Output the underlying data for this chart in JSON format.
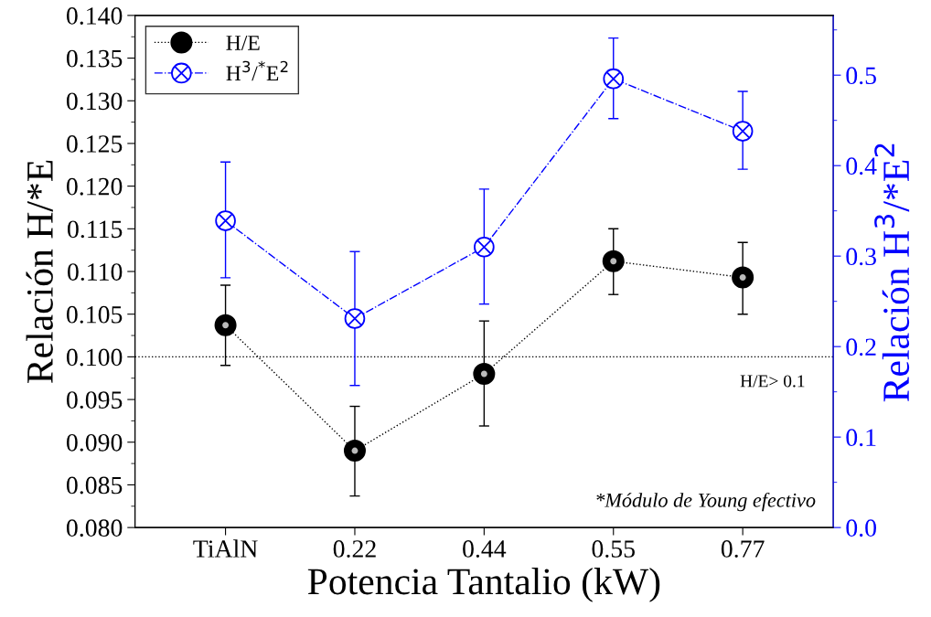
{
  "chart_data": {
    "type": "line",
    "xlabel": "Potencia Tantalio (kW)",
    "ylabel": "Relación H/*E",
    "y2label": "Relación H$^{3}$/*E$^{2}$",
    "categories": [
      "TiAlN",
      "0.22",
      "0.44",
      "0.55",
      "0.77"
    ],
    "series": [
      {
        "name": "H/E",
        "color": "#000000",
        "marker": "circle",
        "line_style": "dotted",
        "values": [
          0.1037,
          0.089,
          0.098,
          0.1112,
          0.1093
        ],
        "errors": [
          [
            0.099,
            0.1084
          ],
          [
            0.0837,
            0.0942
          ],
          [
            0.0919,
            0.1042
          ],
          [
            0.1073,
            0.115
          ],
          [
            0.105,
            0.1134
          ]
        ]
      },
      {
        "name": "H$^{3}$/$^{*}$E$^{2}$",
        "color": "#0000ff",
        "marker": "cross",
        "line_style": "dashed",
        "axis": "y2",
        "values": [
          0.339,
          0.231,
          0.31,
          0.496,
          0.438
        ],
        "errors": [
          [
            0.276,
            0.404
          ],
          [
            0.157,
            0.305
          ],
          [
            0.247,
            0.374
          ],
          [
            0.452,
            0.541
          ],
          [
            0.396,
            0.482
          ]
        ]
      }
    ],
    "ylim": [
      0.08,
      0.14
    ],
    "yticks": [
      {
        "value": 0.08,
        "label": "0.080"
      },
      {
        "value": 0.085,
        "label": "0.085"
      },
      {
        "value": 0.09,
        "label": "0.090"
      },
      {
        "value": 0.095,
        "label": "0.095"
      },
      {
        "value": 0.1,
        "label": "0.100"
      },
      {
        "value": 0.105,
        "label": "0.105"
      },
      {
        "value": 0.11,
        "label": "0.110"
      },
      {
        "value": 0.115,
        "label": "0.115"
      },
      {
        "value": 0.12,
        "label": "0.120"
      },
      {
        "value": 0.125,
        "label": "0.125"
      },
      {
        "value": 0.13,
        "label": "0.130"
      },
      {
        "value": 0.135,
        "label": "0.135"
      },
      {
        "value": 0.14,
        "label": "0.140"
      }
    ],
    "y2lim": [
      0.0,
      0.566
    ],
    "y2ticks": [
      {
        "value": 0.0,
        "label": "0.0"
      },
      {
        "value": 0.1,
        "label": "0.1"
      },
      {
        "value": 0.2,
        "label": "0.2"
      },
      {
        "value": 0.3,
        "label": "0.3"
      },
      {
        "value": 0.4,
        "label": "0.4"
      },
      {
        "value": 0.5,
        "label": "0.5"
      }
    ],
    "ref_lines": [
      {
        "axis": "y",
        "value": 0.1,
        "label": "H/E> 0.1",
        "color": "#000000",
        "line_style": "dotted"
      }
    ],
    "annotations": [
      "*Módulo de Young efectivo"
    ],
    "legend": "top left",
    "grid": false
  }
}
